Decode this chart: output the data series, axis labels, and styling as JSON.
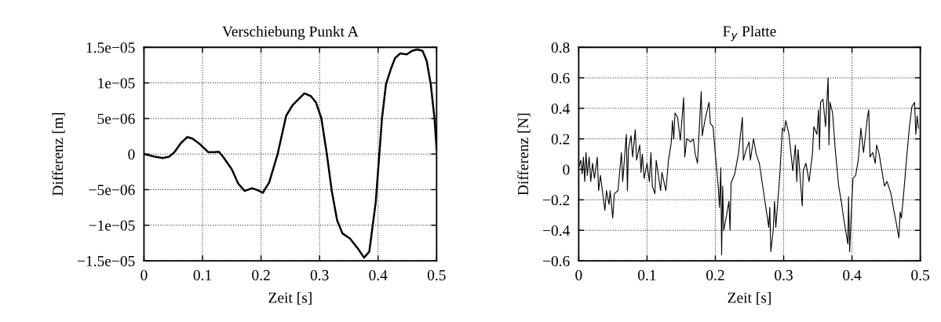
{
  "chart_data": [
    {
      "type": "line",
      "title": "Verschiebung Punkt A",
      "xlabel": "Zeit [s]",
      "ylabel": "Differenz [m]",
      "series": [
        {
          "color": "#000000",
          "x": [
            0,
            0.0187,
            0.032,
            0.043,
            0.052,
            0.063,
            0.074,
            0.083,
            0.096,
            0.11,
            0.119,
            0.128,
            0.136,
            0.15,
            0.161,
            0.172,
            0.185,
            0.194,
            0.203,
            0.214,
            0.228,
            0.243,
            0.254,
            0.263,
            0.274,
            0.285,
            0.294,
            0.303,
            0.312,
            0.321,
            0.33,
            0.339,
            0.352,
            0.366,
            0.376,
            0.385,
            0.396,
            0.4067,
            0.4135,
            0.422,
            0.429,
            0.438,
            0.449,
            0.458,
            0.467,
            0.476,
            0.483,
            0.49,
            0.4964,
            0.5
          ],
          "values": [
            0,
            -3.7e-07,
            -5.5e-07,
            -3.7e-07,
            2.6e-07,
            1.54e-06,
            2.39e-06,
            2.17e-06,
            1.36e-06,
            2.6e-07,
            2.6e-07,
            3.3e-07,
            -4.8e-07,
            -2.13e-06,
            -4.15e-06,
            -5.18e-06,
            -4.8e-06,
            -5.07e-06,
            -5.44e-06,
            -3.97e-06,
            -1.1e-07,
            5.4e-06,
            6.87e-06,
            7.61e-06,
            8.53e-06,
            8.16e-06,
            7.24e-06,
            5.04e-06,
            2.6e-07,
            -5.26e-06,
            -9.3e-06,
            -1.114e-05,
            -1.187e-05,
            -1.334e-05,
            -1.456e-05,
            -1.37e-05,
            -6.73e-06,
            5.04e-06,
            9.8e-06,
            1.2e-05,
            1.35e-05,
            1.415e-05,
            1.4e-05,
            1.45e-05,
            1.47e-05,
            1.45e-05,
            1.31e-05,
            9.8e-06,
            5e-06,
            6e-07
          ]
        }
      ],
      "xlim": [
        0,
        0.5
      ],
      "xticks": [
        0,
        0.1,
        0.2,
        0.3,
        0.4,
        0.5
      ],
      "ylim": [
        -1.5e-05,
        1.5e-05
      ],
      "yticks": [
        {
          "value": -1.5e-05,
          "label": "−1.5e−05"
        },
        {
          "value": -1e-05,
          "label": "−1e−05"
        },
        {
          "value": -5e-06,
          "label": "−5e−06"
        },
        0,
        {
          "value": 5e-06,
          "label": "5e−06"
        },
        {
          "value": 1e-05,
          "label": "1e−05"
        },
        {
          "value": 1.5e-05,
          "label": "1.5e−05"
        }
      ],
      "grid": true,
      "legend": false
    },
    {
      "type": "line",
      "title": "F$_{y}$ Platte",
      "xlabel": "Zeit [s]",
      "ylabel": "Differenz [N]",
      "series": [
        {
          "color": "#000000",
          "x": [
            0,
            0.0031,
            0.005,
            0.0069,
            0.0088,
            0.0107,
            0.0126,
            0.0153,
            0.0176,
            0.0203,
            0.023,
            0.0272,
            0.0291,
            0.0318,
            0.0383,
            0.0406,
            0.0444,
            0.046,
            0.0498,
            0.0521,
            0.0575,
            0.0625,
            0.0644,
            0.0697,
            0.0713,
            0.0728,
            0.0766,
            0.0789,
            0.0828,
            0.0847,
            0.0893,
            0.0912,
            0.0931,
            0.0958,
            0.1,
            0.1034,
            0.1057,
            0.1077,
            0.1115,
            0.1134,
            0.1199,
            0.1218,
            0.1276,
            0.1314,
            0.1356,
            0.1372,
            0.1391,
            0.141,
            0.1448,
            0.1487,
            0.1536,
            0.1552,
            0.1582,
            0.164,
            0.1678,
            0.1705,
            0.1739,
            0.1774,
            0.1793,
            0.1808,
            0.1851,
            0.1908,
            0.1927,
            0.1966,
            0.2004,
            0.2042,
            0.2061,
            0.208,
            0.2092,
            0.2107,
            0.2123,
            0.2157,
            0.2199,
            0.2215,
            0.223,
            0.2284,
            0.2337,
            0.2379,
            0.2395,
            0.241,
            0.2452,
            0.2494,
            0.2513,
            0.2559,
            0.2598,
            0.2644,
            0.2693,
            0.2743,
            0.2782,
            0.2797,
            0.2812,
            0.2847,
            0.2866,
            0.2885,
            0.2943,
            0.2981,
            0.3011,
            0.3031,
            0.3077,
            0.3134,
            0.3172,
            0.3192,
            0.3211,
            0.3272,
            0.3287,
            0.3326,
            0.3372,
            0.3421,
            0.3441,
            0.3487,
            0.351,
            0.3525,
            0.354,
            0.3575,
            0.3613,
            0.3651,
            0.3663,
            0.3678,
            0.3716,
            0.3755,
            0.3805,
            0.3843,
            0.3881,
            0.39,
            0.3939,
            0.395,
            0.3966,
            0.3985,
            0.4015,
            0.4054,
            0.4092,
            0.413,
            0.4169,
            0.4226,
            0.4245,
            0.4264,
            0.4303,
            0.4341,
            0.436,
            0.4398,
            0.4475,
            0.4513,
            0.4571,
            0.4609,
            0.4648,
            0.4686,
            0.4705,
            0.4724,
            0.4762,
            0.4801,
            0.4839,
            0.4877,
            0.4916,
            0.4935,
            0.4954,
            0.4973
          ],
          "values": [
            0.01,
            0.06,
            -0.03,
            0.08,
            -0.08,
            0.11,
            -0.04,
            0.08,
            -0.08,
            0.04,
            -0.06,
            0.08,
            -0.14,
            -0.04,
            -0.27,
            -0.14,
            -0.23,
            -0.14,
            -0.32,
            -0.16,
            -0.14,
            0.11,
            -0.08,
            0.23,
            -0.14,
            0.13,
            0.22,
            0.08,
            0.26,
            0.06,
            0.16,
            -0.02,
            0.1,
            -0.06,
            0.04,
            -0.08,
            0.11,
            -0.11,
            -0.16,
            0.06,
            -0.14,
            -0.02,
            -0.14,
            0.06,
            0.18,
            0.32,
            0.2,
            0.37,
            0.34,
            0.19,
            0.47,
            0.08,
            0.2,
            0.18,
            0.2,
            0.1,
            0.04,
            0.35,
            0.51,
            0.22,
            0.33,
            0.44,
            0.3,
            0.28,
            0.08,
            -0.11,
            -0.25,
            0.01,
            -0.56,
            -0.11,
            -0.4,
            -0.32,
            -0.21,
            -0.4,
            -0.09,
            -0.03,
            0.1,
            0.27,
            0.34,
            0.06,
            0.13,
            0.18,
            0.06,
            0.2,
            0.1,
            0.04,
            -0.11,
            -0.26,
            -0.38,
            -0.25,
            -0.54,
            -0.4,
            -0.21,
            -0.38,
            -0.04,
            0.27,
            0.25,
            0.32,
            0.23,
            -0.01,
            0.16,
            -0.08,
            0.13,
            -0.24,
            -0.01,
            0.04,
            -0.08,
            0.1,
            0.28,
            0.23,
            0.39,
            0.13,
            0.44,
            0.46,
            0.28,
            0.6,
            0.16,
            0.44,
            0.37,
            0.13,
            -0.11,
            -0.21,
            -0.33,
            -0.38,
            -0.49,
            -0.18,
            -0.54,
            -0.33,
            -0.06,
            -0.04,
            0.06,
            0.27,
            0.11,
            0.34,
            0.39,
            0.08,
            0.11,
            0.04,
            0.16,
            0.1,
            -0.11,
            -0.08,
            -0.16,
            -0.26,
            -0.35,
            -0.45,
            -0.28,
            -0.32,
            -0.13,
            0.08,
            0.27,
            0.41,
            0.44,
            0.23,
            0.35,
            0.27
          ]
        }
      ],
      "xlim": [
        0,
        0.5
      ],
      "xticks": [
        0,
        0.1,
        0.2,
        0.3,
        0.4,
        0.5
      ],
      "ylim": [
        -0.6,
        0.8
      ],
      "yticks": [
        {
          "value": -0.6,
          "label": "−0.6"
        },
        {
          "value": -0.4,
          "label": "−0.4"
        },
        {
          "value": -0.2,
          "label": "−0.2"
        },
        0,
        0.2,
        0.4,
        0.6,
        0.8
      ],
      "grid": true,
      "legend": false
    }
  ]
}
